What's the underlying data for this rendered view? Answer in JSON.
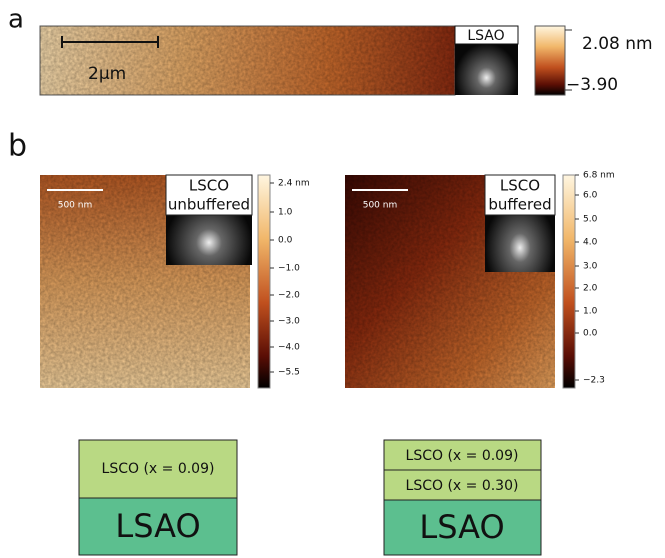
{
  "panel_a": {
    "label": "a",
    "scale_bar": "2μm",
    "inset_label": "LSAO",
    "colorbar_max": "2.08 nm",
    "colorbar_min": "−3.90"
  },
  "panel_b": {
    "label": "b",
    "left": {
      "scale_bar": "500 nm",
      "inset_label": [
        "LSCO",
        "unbuffered"
      ],
      "colorbar_ticks": [
        "2.4 nm",
        "1.0",
        "0.0",
        "−1.0",
        "−2.0",
        "−3.0",
        "−4.0",
        "−5.5"
      ]
    },
    "right": {
      "scale_bar": "500 nm",
      "inset_label": [
        "LSCO",
        "buffered"
      ],
      "colorbar_ticks": [
        "6.8 nm",
        "6.0",
        "5.0",
        "4.0",
        "3.0",
        "2.0",
        "1.0",
        "0.0",
        "−2.3"
      ]
    }
  },
  "stacks": {
    "left": {
      "layers": [
        "LSCO (x = 0.09)"
      ],
      "substrate": "LSAO"
    },
    "right": {
      "layers": [
        "LSCO (x = 0.09)",
        "LSCO (x = 0.30)"
      ],
      "substrate": "LSAO"
    }
  }
}
